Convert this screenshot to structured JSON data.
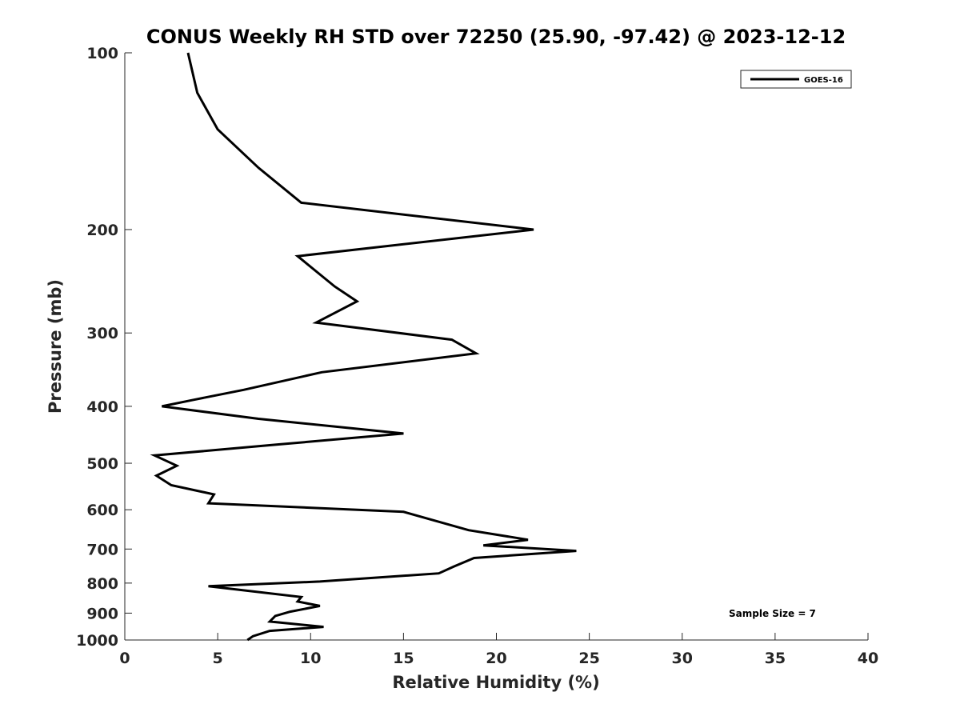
{
  "chart_data": {
    "type": "line",
    "title": "CONUS Weekly RH STD over 72250 (25.90, -97.42) @ 2023-12-12",
    "xlabel": "Relative Humidity (%)",
    "ylabel": "Pressure (mb)",
    "xlim": [
      0,
      40
    ],
    "ylim": [
      100,
      1000
    ],
    "yscale": "log",
    "y_reversed": true,
    "xticks": [
      0,
      5,
      10,
      15,
      20,
      25,
      30,
      35,
      40
    ],
    "yticks": [
      100,
      200,
      300,
      400,
      500,
      600,
      700,
      800,
      900,
      1000
    ],
    "grid": false,
    "legend_position": "top-right",
    "annotation": "Sample Size = 7",
    "series": [
      {
        "name": "GOES-16",
        "color": "#000000",
        "x": [
          3.4,
          3.9,
          5.0,
          7.2,
          9.5,
          22.0,
          9.3,
          11.3,
          12.5,
          10.3,
          17.6,
          18.9,
          10.6,
          6.4,
          3.7,
          2.0,
          7.2,
          15.0,
          8.1,
          1.6,
          2.8,
          1.7,
          2.5,
          4.8,
          4.5,
          15.0,
          18.5,
          21.7,
          19.3,
          24.3,
          18.8,
          17.7,
          16.9,
          10.5,
          4.5,
          9.5,
          9.3,
          10.5,
          8.9,
          8.1,
          7.8,
          10.7,
          7.8,
          6.9,
          6.6
        ],
        "y": [
          100,
          117,
          135,
          157,
          180,
          200,
          222,
          250,
          265,
          288,
          308,
          325,
          350,
          375,
          390,
          400,
          420,
          445,
          465,
          485,
          505,
          525,
          545,
          565,
          585,
          605,
          650,
          675,
          690,
          705,
          725,
          750,
          770,
          795,
          810,
          845,
          860,
          875,
          895,
          910,
          930,
          950,
          965,
          985,
          1000
        ]
      }
    ]
  }
}
